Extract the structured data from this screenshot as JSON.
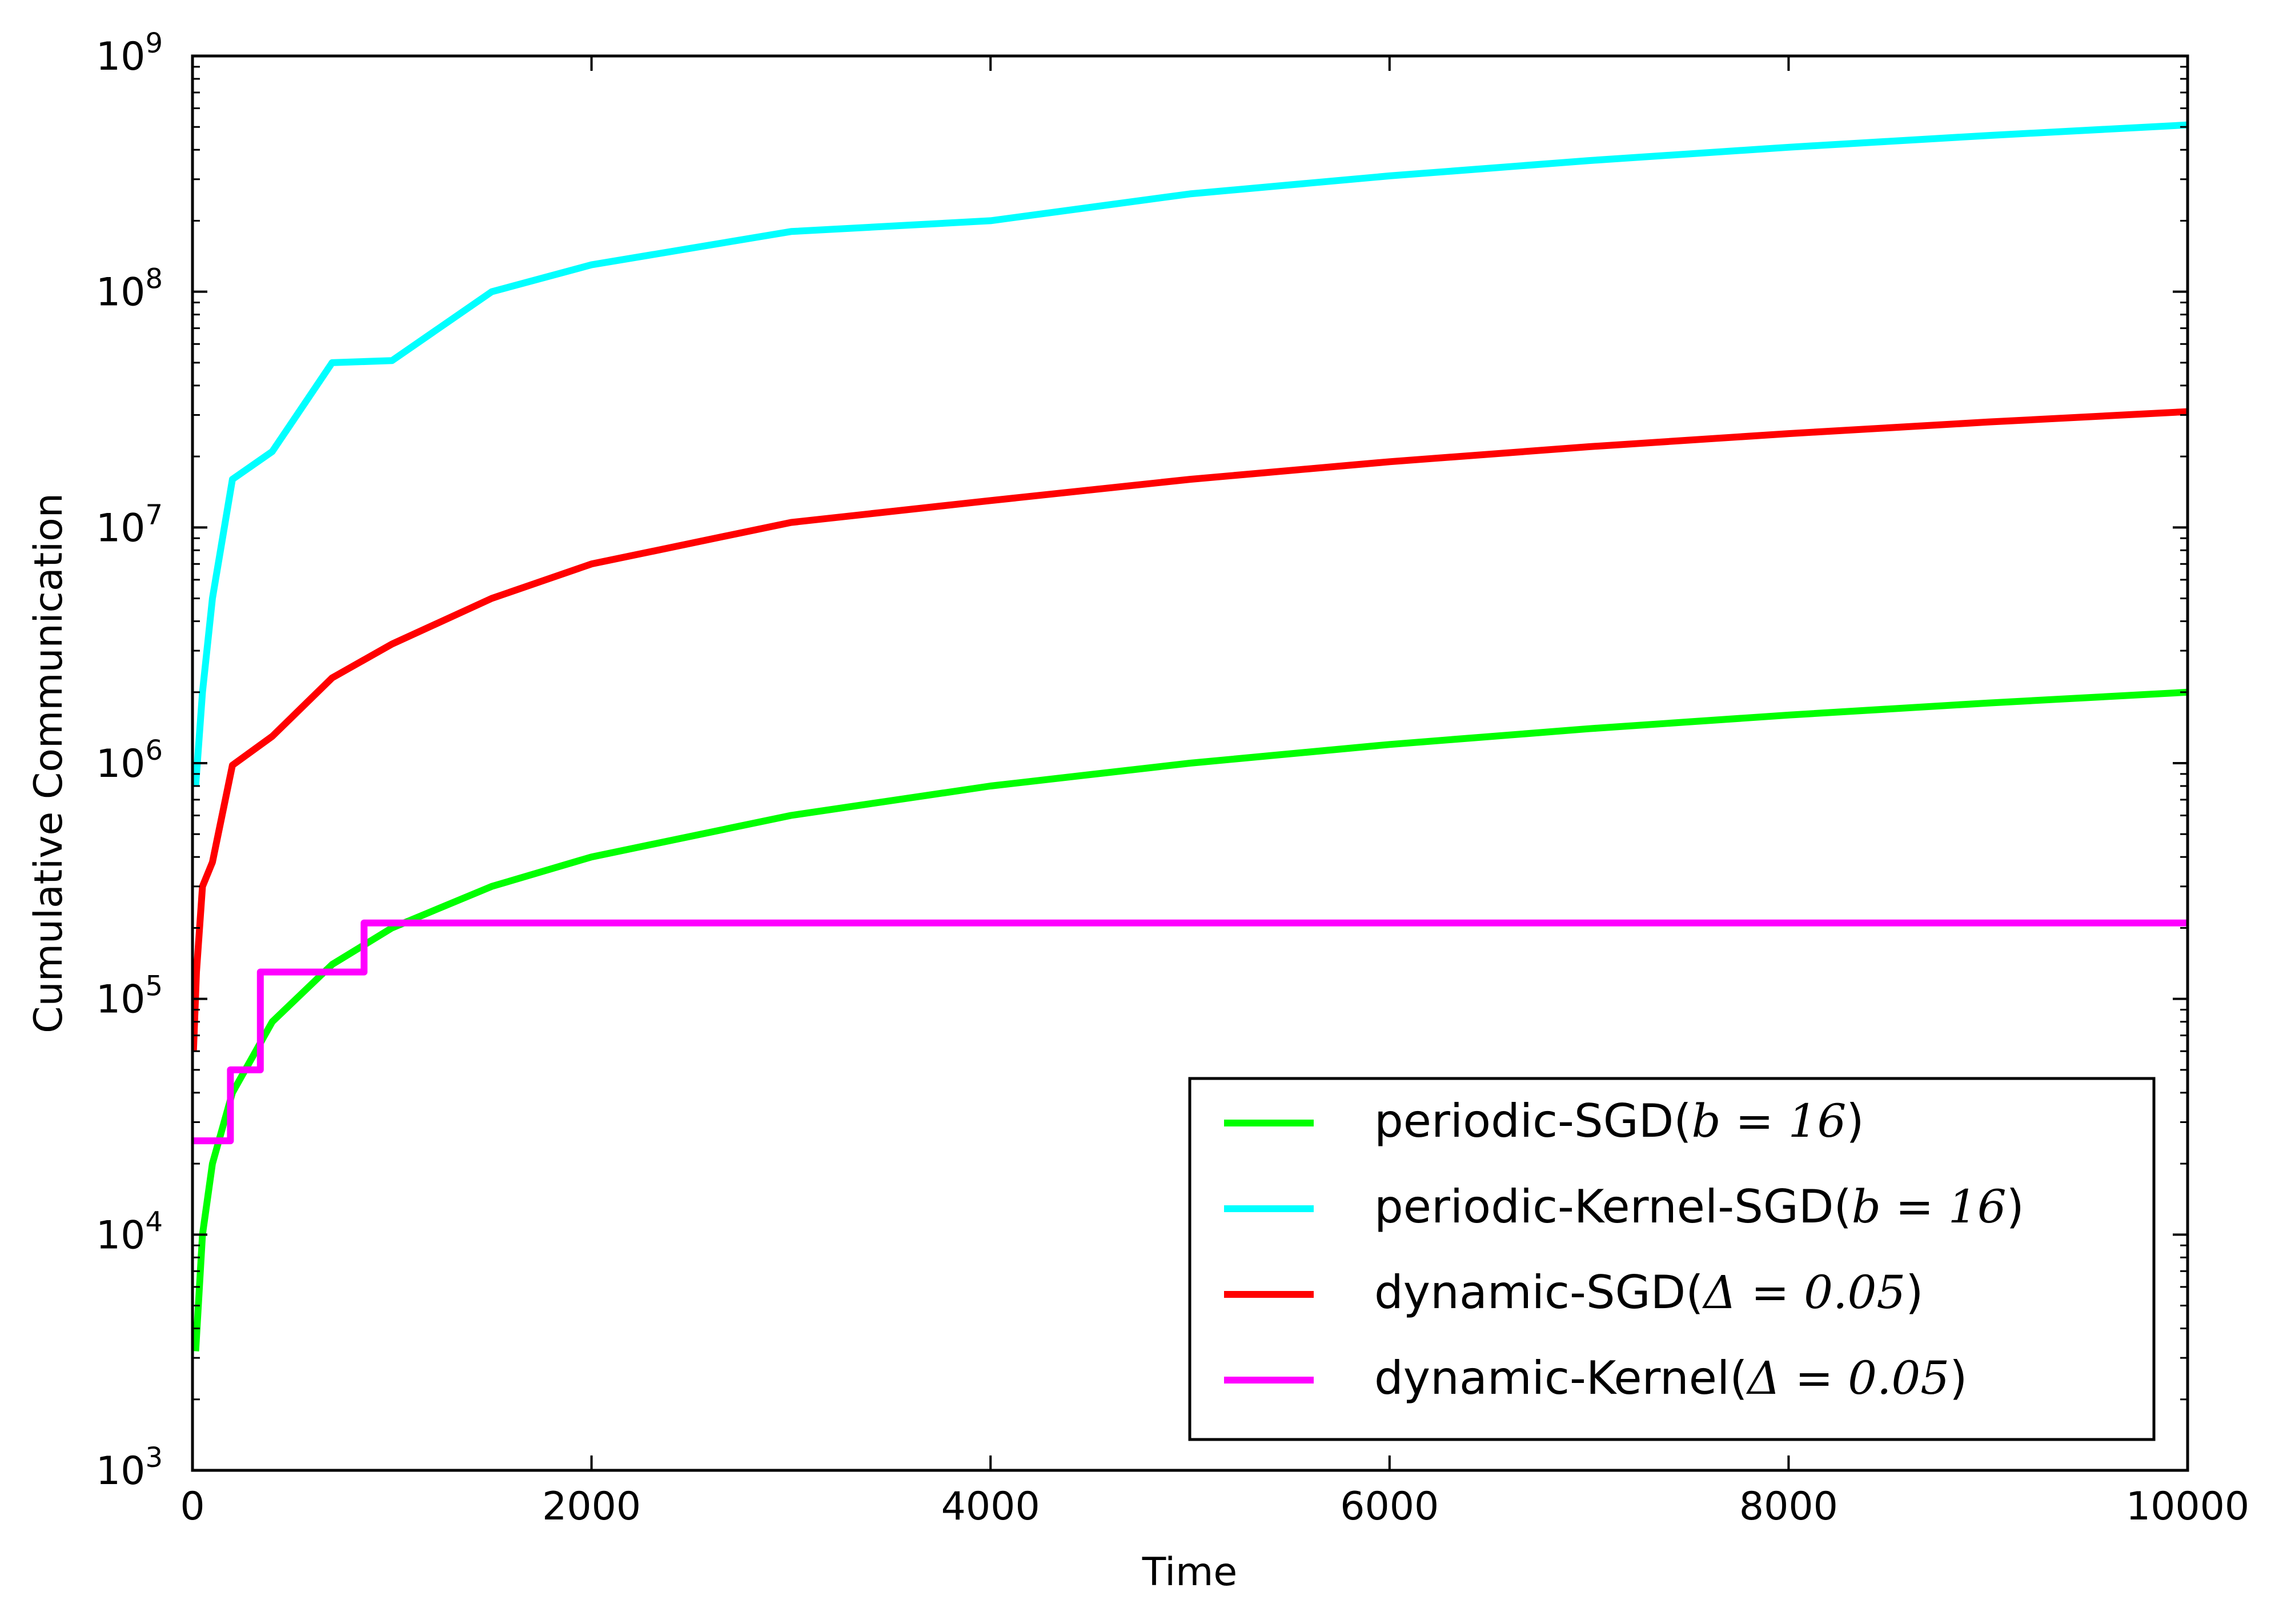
{
  "chart_data": {
    "type": "line",
    "xlabel": "Time",
    "ylabel": "Cumulative Communication",
    "xlim": [
      0,
      10000
    ],
    "ylim": [
      1000,
      1000000000
    ],
    "yscale": "log",
    "grid": false,
    "legend_position": "lower-right",
    "x_ticks": [
      {
        "value": 0,
        "label": "0"
      },
      {
        "value": 2000,
        "label": "2000"
      },
      {
        "value": 4000,
        "label": "4000"
      },
      {
        "value": 6000,
        "label": "6000"
      },
      {
        "value": 8000,
        "label": "8000"
      },
      {
        "value": 10000,
        "label": "10000"
      }
    ],
    "y_ticks": [
      {
        "value": 1000,
        "base": "10",
        "exp": "3"
      },
      {
        "value": 10000,
        "base": "10",
        "exp": "4"
      },
      {
        "value": 100000,
        "base": "10",
        "exp": "5"
      },
      {
        "value": 1000000,
        "base": "10",
        "exp": "6"
      },
      {
        "value": 10000000,
        "base": "10",
        "exp": "7"
      },
      {
        "value": 100000000,
        "base": "10",
        "exp": "8"
      },
      {
        "value": 1000000000,
        "base": "10",
        "exp": "9"
      }
    ],
    "series": [
      {
        "name": "periodic-SGD(b=16)",
        "legend_prefix": "periodic-SGD(",
        "legend_math": "b = 16",
        "legend_suffix": ")",
        "color": "#00ff00",
        "step": false,
        "x": [
          16,
          50,
          100,
          200,
          400,
          700,
          1000,
          1500,
          2000,
          3000,
          4000,
          5000,
          6000,
          7000,
          8000,
          9000,
          10000
        ],
        "y": [
          3200,
          10000,
          20000,
          40000,
          80000,
          140000,
          200000,
          300000,
          400000,
          600000,
          800000,
          1000000,
          1200000,
          1400000,
          1600000,
          1800000,
          2000000
        ]
      },
      {
        "name": "periodic-Kernel-SGD(b=16)",
        "legend_prefix": "periodic-Kernel-SGD(",
        "legend_math": "b = 16",
        "legend_suffix": ")",
        "color": "#00ffff",
        "step": false,
        "x": [
          16,
          50,
          100,
          200,
          400,
          700,
          1000,
          1500,
          2000,
          3000,
          4000,
          5000,
          6000,
          7000,
          8000,
          9000,
          10000
        ],
        "y": [
          800000,
          2000000,
          5000000,
          16000000,
          21000000,
          50000000,
          51000000,
          100000000,
          130000000,
          180000000,
          200000000,
          260000000,
          310000000,
          360000000,
          410000000,
          460000000,
          510000000
        ]
      },
      {
        "name": "dynamic-SGD(Δ=0.05)",
        "legend_prefix": "dynamic-SGD(",
        "legend_math": "Δ = 0.05",
        "legend_suffix": ")",
        "color": "#ff0000",
        "step": false,
        "x": [
          5,
          20,
          50,
          100,
          200,
          400,
          700,
          1000,
          1500,
          2000,
          3000,
          4000,
          5000,
          6000,
          7000,
          8000,
          9000,
          10000
        ],
        "y": [
          60000,
          130000,
          300000,
          380000,
          980000,
          1300000,
          2300000,
          3200000,
          5000000,
          7000000,
          10500000,
          13000000,
          16000000,
          19000000,
          22000000,
          25000000,
          28000000,
          31000000
        ]
      },
      {
        "name": "dynamic-Kernel(Δ=0.05)",
        "legend_prefix": "dynamic-Kernel(",
        "legend_math": "Δ = 0.05",
        "legend_suffix": ")",
        "color": "#ff00ff",
        "step": true,
        "x": [
          0,
          190,
          340,
          860,
          10000
        ],
        "y": [
          25000,
          50000,
          130000,
          210000,
          210000
        ]
      }
    ]
  }
}
